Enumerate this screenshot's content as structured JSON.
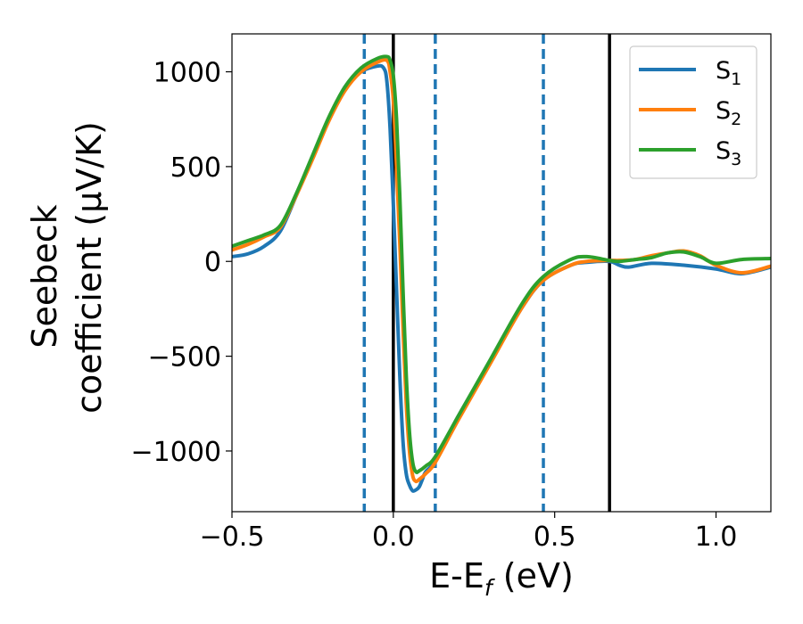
{
  "chart_data": {
    "type": "line",
    "xlabel": "E-E",
    "xlabel_sub": "f",
    "xlabel_unit": " (eV)",
    "ylabel_line1": "Seebeck",
    "ylabel_line2": "coefficient  (μV/K)",
    "xlim": [
      -0.5,
      1.17
    ],
    "ylim": [
      -1320,
      1200
    ],
    "xticks": [
      {
        "value": -0.5,
        "label": "−0.5"
      },
      {
        "value": 0.0,
        "label": "0.0"
      },
      {
        "value": 0.5,
        "label": "0.5"
      },
      {
        "value": 1.0,
        "label": "1.0"
      }
    ],
    "yticks": [
      {
        "value": 1000,
        "label": "1000"
      },
      {
        "value": 500,
        "label": "500"
      },
      {
        "value": 0,
        "label": "0"
      },
      {
        "value": -500,
        "label": "−500"
      },
      {
        "value": -1000,
        "label": "−1000"
      }
    ],
    "grid": false,
    "legend_position": "top-right",
    "vlines_solid": [
      0.0,
      0.67
    ],
    "vlines_dashed": [
      -0.09,
      0.13,
      0.465
    ],
    "vline_solid_color": "#000000",
    "vline_dashed_color": "#1f77b4",
    "series": [
      {
        "name": "S",
        "sub": "1",
        "color": "#1f77b4",
        "x": [
          -0.5,
          -0.45,
          -0.4,
          -0.35,
          -0.3,
          -0.25,
          -0.2,
          -0.15,
          -0.1,
          -0.05,
          -0.03,
          -0.02,
          -0.01,
          0.0,
          0.01,
          0.02,
          0.03,
          0.04,
          0.05,
          0.06,
          0.07,
          0.08,
          0.09,
          0.1,
          0.13,
          0.2,
          0.3,
          0.4,
          0.465,
          0.55,
          0.6,
          0.67,
          0.7,
          0.73,
          0.8,
          0.9,
          1.0,
          1.08,
          1.17
        ],
        "y": [
          25,
          40,
          80,
          160,
          350,
          550,
          750,
          920,
          1000,
          1030,
          1020,
          950,
          700,
          300,
          -150,
          -600,
          -950,
          -1120,
          -1180,
          -1210,
          -1205,
          -1190,
          -1150,
          -1110,
          -1050,
          -820,
          -530,
          -240,
          -100,
          -20,
          -5,
          0,
          -20,
          -30,
          -10,
          -20,
          -40,
          -65,
          -30
        ]
      },
      {
        "name": "S",
        "sub": "2",
        "color": "#ff7f0e",
        "x": [
          -0.5,
          -0.45,
          -0.4,
          -0.35,
          -0.3,
          -0.25,
          -0.2,
          -0.15,
          -0.1,
          -0.05,
          -0.02,
          -0.01,
          0.0,
          0.01,
          0.02,
          0.03,
          0.04,
          0.05,
          0.06,
          0.07,
          0.08,
          0.1,
          0.13,
          0.2,
          0.3,
          0.4,
          0.465,
          0.55,
          0.6,
          0.67,
          0.7,
          0.75,
          0.8,
          0.85,
          0.9,
          0.95,
          1.0,
          1.08,
          1.17
        ],
        "y": [
          60,
          90,
          130,
          180,
          350,
          540,
          740,
          900,
          1000,
          1050,
          1060,
          1000,
          850,
          500,
          100,
          -350,
          -750,
          -1000,
          -1130,
          -1160,
          -1150,
          -1120,
          -1060,
          -840,
          -540,
          -240,
          -100,
          -20,
          0,
          5,
          5,
          10,
          30,
          45,
          55,
          30,
          -20,
          -60,
          -25
        ]
      },
      {
        "name": "S",
        "sub": "3",
        "color": "#2ca02c",
        "x": [
          -0.5,
          -0.45,
          -0.4,
          -0.35,
          -0.3,
          -0.25,
          -0.2,
          -0.15,
          -0.1,
          -0.05,
          -0.02,
          -0.01,
          0.0,
          0.01,
          0.02,
          0.03,
          0.04,
          0.05,
          0.06,
          0.07,
          0.08,
          0.1,
          0.13,
          0.2,
          0.3,
          0.4,
          0.465,
          0.55,
          0.6,
          0.67,
          0.7,
          0.75,
          0.8,
          0.85,
          0.9,
          0.95,
          1.0,
          1.08,
          1.17
        ],
        "y": [
          80,
          110,
          140,
          190,
          360,
          560,
          760,
          920,
          1020,
          1070,
          1080,
          1060,
          980,
          750,
          350,
          -150,
          -600,
          -900,
          -1060,
          -1110,
          -1105,
          -1080,
          -1030,
          -820,
          -520,
          -220,
          -80,
          10,
          25,
          5,
          0,
          10,
          20,
          45,
          50,
          25,
          -10,
          10,
          15
        ]
      }
    ]
  }
}
